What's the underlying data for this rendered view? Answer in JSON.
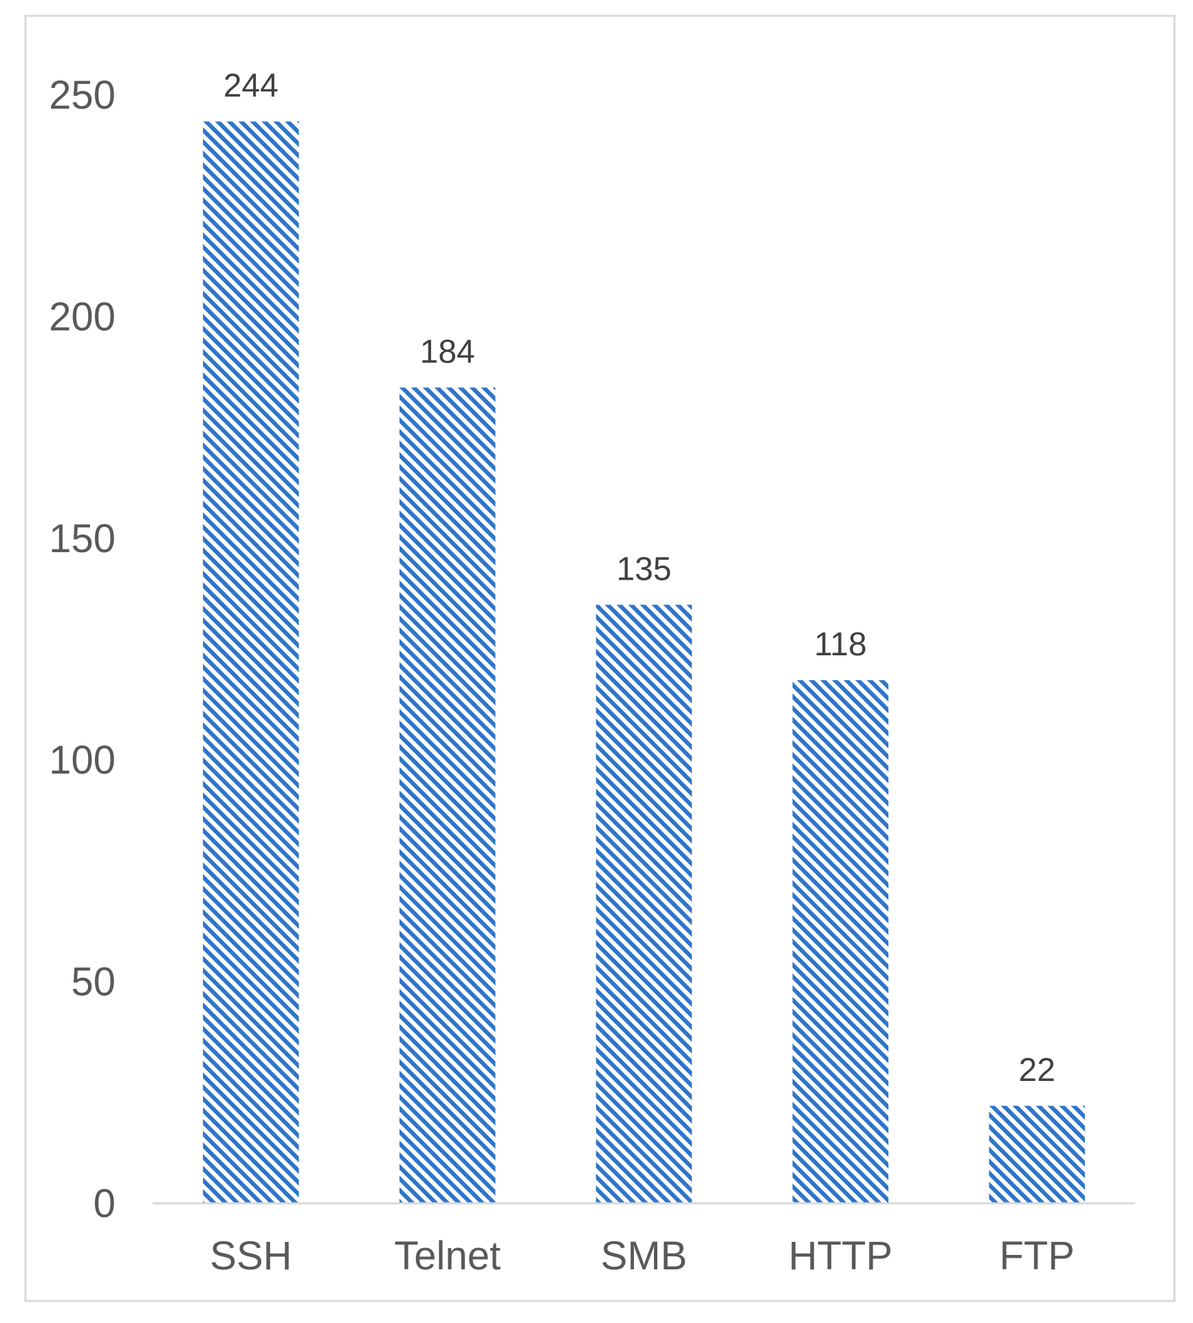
{
  "chart_data": {
    "type": "bar",
    "categories": [
      "SSH",
      "Telnet",
      "SMB",
      "HTTP",
      "FTP"
    ],
    "values": [
      244,
      184,
      135,
      118,
      22
    ],
    "data_labels": [
      "244",
      "184",
      "135",
      "118",
      "22"
    ],
    "y_ticks": [
      "0",
      "50",
      "100",
      "150",
      "200",
      "250"
    ],
    "ylim": [
      0,
      250
    ],
    "title": "",
    "xlabel": "",
    "ylabel": "",
    "grid": false,
    "legend": "none",
    "bar_pattern": "diagonal-hatch",
    "colors": {
      "bar": "#2f75c8",
      "axis": "#d9d9d9",
      "frame": "#d9d9d9"
    }
  }
}
